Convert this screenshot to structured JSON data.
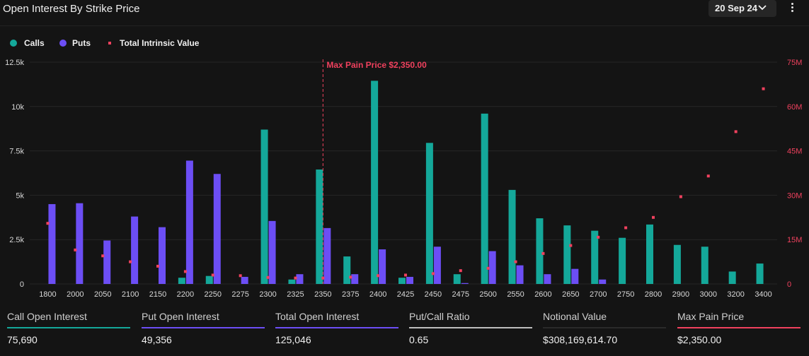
{
  "header": {
    "title": "Open Interest By Strike Price",
    "date_selector": "20 Sep 24"
  },
  "legend": {
    "calls": "Calls",
    "puts": "Puts",
    "intrinsic": "Total Intrinsic Value"
  },
  "colors": {
    "calls": "#14a89a",
    "puts": "#6c4ef5",
    "intrinsic": "#f0415e",
    "max_pain": "#f0415e",
    "grid": "#262626",
    "axis_text": "#d9d9d9"
  },
  "chart_data": {
    "type": "bar",
    "title": "Open Interest By Strike Price",
    "categories": [
      "1800",
      "2000",
      "2050",
      "2100",
      "2150",
      "2200",
      "2250",
      "2275",
      "2300",
      "2325",
      "2350",
      "2375",
      "2400",
      "2425",
      "2450",
      "2475",
      "2500",
      "2550",
      "2600",
      "2650",
      "2700",
      "2750",
      "2800",
      "2900",
      "3000",
      "3200",
      "3400"
    ],
    "series": [
      {
        "name": "Calls",
        "axis": "left",
        "values": [
          0,
          0,
          0,
          0,
          0,
          350,
          450,
          0,
          8700,
          250,
          6450,
          1550,
          11450,
          350,
          7950,
          550,
          9600,
          5300,
          3700,
          3300,
          3000,
          2600,
          3350,
          2200,
          2100,
          700,
          1150
        ]
      },
      {
        "name": "Puts",
        "axis": "left",
        "values": [
          4500,
          4550,
          2450,
          3800,
          3200,
          6950,
          6200,
          400,
          3550,
          550,
          3150,
          550,
          1950,
          400,
          2100,
          50,
          1850,
          1050,
          550,
          850,
          250,
          0,
          0,
          0,
          0,
          0,
          0
        ]
      },
      {
        "name": "Total Intrinsic Value",
        "axis": "right",
        "marker": "square",
        "values": [
          20500,
          11500,
          9500,
          7500,
          6000,
          4200,
          3000,
          2800,
          2200,
          2000,
          2000,
          2300,
          2800,
          3000,
          3500,
          4500,
          5300,
          7500,
          10300,
          13000,
          15800,
          19000,
          22500,
          29500,
          36500,
          51500,
          66000
        ]
      }
    ],
    "y_left": {
      "ylim": [
        0,
        12500
      ],
      "ticks": [
        0,
        2500,
        5000,
        7500,
        10000,
        12500
      ],
      "tick_labels": [
        "0",
        "2.5k",
        "5k",
        "7.5k",
        "10k",
        "12.5k"
      ]
    },
    "y_right": {
      "ylim": [
        0,
        75000000
      ],
      "ticks": [
        0,
        15000000,
        30000000,
        45000000,
        60000000,
        75000000
      ],
      "tick_labels": [
        "0",
        "15M",
        "30M",
        "45M",
        "60M",
        "75M"
      ]
    },
    "intrinsic_units_note": "intrinsic values in thousands",
    "annotation": {
      "label": "Max Pain Price $2,350.00",
      "category": "2350"
    },
    "grid": "horizontal",
    "legend": "top-left"
  },
  "stats": [
    {
      "label": "Call Open Interest",
      "value": "75,690",
      "color": "#14a89a"
    },
    {
      "label": "Put Open Interest",
      "value": "49,356",
      "color": "#6c4ef5"
    },
    {
      "label": "Total Open Interest",
      "value": "125,046",
      "color": "#6c4ef5"
    },
    {
      "label": "Put/Call Ratio",
      "value": "0.65",
      "color": "#bdbdbd"
    },
    {
      "label": "Notional Value",
      "value": "$308,169,614.70",
      "color": "#2a2a2a"
    },
    {
      "label": "Max Pain Price",
      "value": "$2,350.00",
      "color": "#f0415e"
    }
  ]
}
